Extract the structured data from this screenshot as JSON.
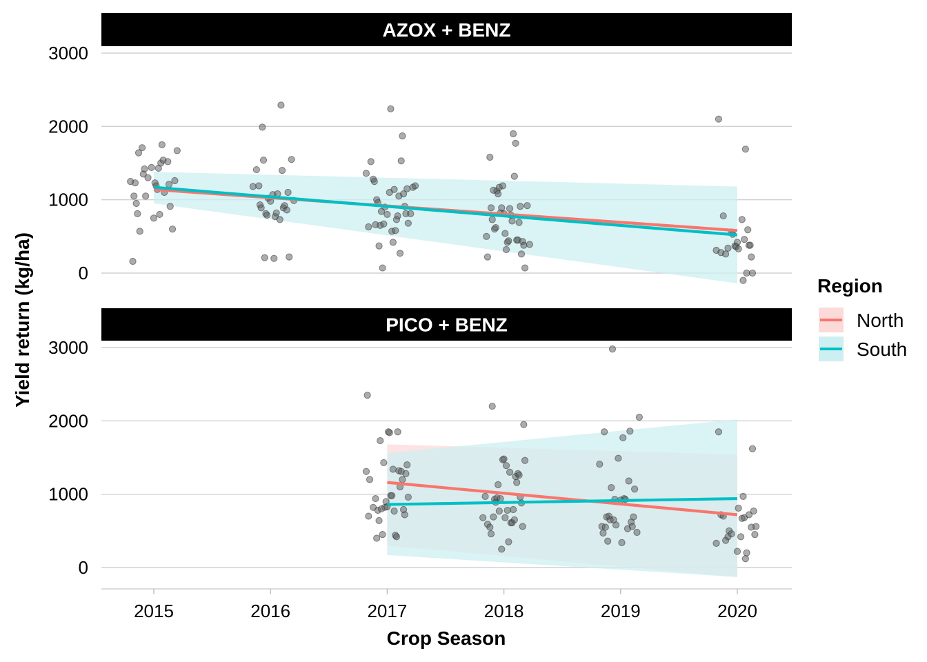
{
  "chart_data": {
    "type": "scatter",
    "xlabel": "Crop Season",
    "ylabel": "Yield return (kg/ha)",
    "x_ticks": [
      "2015",
      "2016",
      "2017",
      "2018",
      "2019",
      "2020"
    ],
    "y_ticks": [
      "0",
      "1000",
      "2000",
      "3000"
    ],
    "xlim": [
      2014.55,
      2020.45
    ],
    "ylim": [
      -300,
      3200
    ],
    "grid": "horizontal major gridlines",
    "legend": {
      "title": "Region",
      "position": "right",
      "entries": [
        {
          "label": "North",
          "color": "#F8766D",
          "band": "#FCDADA"
        },
        {
          "label": "South",
          "color": "#00BFC4",
          "band": "#CDEFF1"
        }
      ]
    },
    "point_color": "#5a5a5a",
    "panels": [
      {
        "strip": "AZOX + BENZ",
        "points": [
          [
            2014.8,
            1250
          ],
          [
            2014.82,
            160
          ],
          [
            2014.83,
            1050
          ],
          [
            2014.84,
            1230
          ],
          [
            2014.85,
            950
          ],
          [
            2014.86,
            810
          ],
          [
            2014.87,
            1640
          ],
          [
            2014.88,
            570
          ],
          [
            2014.9,
            1710
          ],
          [
            2014.91,
            1350
          ],
          [
            2014.92,
            1420
          ],
          [
            2014.93,
            1050
          ],
          [
            2014.95,
            1300
          ],
          [
            2014.98,
            1440
          ],
          [
            2015.0,
            750
          ],
          [
            2015.01,
            1230
          ],
          [
            2015.02,
            1190
          ],
          [
            2015.03,
            1140
          ],
          [
            2015.04,
            1430
          ],
          [
            2015.05,
            800
          ],
          [
            2015.06,
            1500
          ],
          [
            2015.07,
            1750
          ],
          [
            2015.08,
            1540
          ],
          [
            2015.09,
            1100
          ],
          [
            2015.12,
            1520
          ],
          [
            2015.13,
            1210
          ],
          [
            2015.14,
            910
          ],
          [
            2015.16,
            600
          ],
          [
            2015.18,
            1260
          ],
          [
            2015.2,
            1670
          ],
          [
            2015.85,
            1180
          ],
          [
            2015.88,
            1410
          ],
          [
            2015.9,
            1190
          ],
          [
            2015.91,
            930
          ],
          [
            2015.92,
            890
          ],
          [
            2015.93,
            1990
          ],
          [
            2015.94,
            1540
          ],
          [
            2015.95,
            210
          ],
          [
            2015.96,
            810
          ],
          [
            2015.97,
            790
          ],
          [
            2015.98,
            1020
          ],
          [
            2016.0,
            980
          ],
          [
            2016.02,
            1070
          ],
          [
            2016.03,
            200
          ],
          [
            2016.04,
            770
          ],
          [
            2016.05,
            820
          ],
          [
            2016.06,
            1080
          ],
          [
            2016.08,
            730
          ],
          [
            2016.09,
            2290
          ],
          [
            2016.1,
            1400
          ],
          [
            2016.11,
            890
          ],
          [
            2016.12,
            920
          ],
          [
            2016.14,
            860
          ],
          [
            2016.15,
            1100
          ],
          [
            2016.16,
            220
          ],
          [
            2016.18,
            1550
          ],
          [
            2016.2,
            990
          ],
          [
            2016.82,
            1360
          ],
          [
            2016.84,
            630
          ],
          [
            2016.86,
            1520
          ],
          [
            2016.88,
            1280
          ],
          [
            2016.89,
            1250
          ],
          [
            2016.9,
            660
          ],
          [
            2016.91,
            1000
          ],
          [
            2016.92,
            960
          ],
          [
            2016.93,
            370
          ],
          [
            2016.94,
            650
          ],
          [
            2016.95,
            840
          ],
          [
            2016.96,
            70
          ],
          [
            2016.97,
            670
          ],
          [
            2016.98,
            900
          ],
          [
            2017.0,
            800
          ],
          [
            2017.02,
            1100
          ],
          [
            2017.03,
            2240
          ],
          [
            2017.04,
            570
          ],
          [
            2017.05,
            420
          ],
          [
            2017.06,
            1140
          ],
          [
            2017.07,
            580
          ],
          [
            2017.08,
            730
          ],
          [
            2017.09,
            780
          ],
          [
            2017.1,
            1050
          ],
          [
            2017.11,
            270
          ],
          [
            2017.12,
            1530
          ],
          [
            2017.13,
            1870
          ],
          [
            2017.14,
            1080
          ],
          [
            2017.15,
            910
          ],
          [
            2017.16,
            810
          ],
          [
            2017.17,
            1150
          ],
          [
            2017.18,
            680
          ],
          [
            2017.2,
            810
          ],
          [
            2017.22,
            1170
          ],
          [
            2017.24,
            1190
          ],
          [
            2017.85,
            500
          ],
          [
            2017.86,
            220
          ],
          [
            2017.88,
            1580
          ],
          [
            2017.89,
            890
          ],
          [
            2017.9,
            730
          ],
          [
            2017.91,
            1130
          ],
          [
            2017.92,
            600
          ],
          [
            2017.93,
            620
          ],
          [
            2017.94,
            1120
          ],
          [
            2017.95,
            1080
          ],
          [
            2017.96,
            1170
          ],
          [
            2017.97,
            820
          ],
          [
            2017.98,
            890
          ],
          [
            2017.99,
            1190
          ],
          [
            2018.0,
            810
          ],
          [
            2018.01,
            540
          ],
          [
            2018.02,
            320
          ],
          [
            2018.03,
            420
          ],
          [
            2018.04,
            440
          ],
          [
            2018.05,
            880
          ],
          [
            2018.06,
            790
          ],
          [
            2018.07,
            710
          ],
          [
            2018.08,
            1900
          ],
          [
            2018.09,
            1320
          ],
          [
            2018.1,
            1770
          ],
          [
            2018.11,
            450
          ],
          [
            2018.12,
            450
          ],
          [
            2018.13,
            690
          ],
          [
            2018.14,
            910
          ],
          [
            2018.15,
            260
          ],
          [
            2018.16,
            430
          ],
          [
            2018.17,
            380
          ],
          [
            2018.18,
            70
          ],
          [
            2018.2,
            920
          ],
          [
            2018.22,
            390
          ],
          [
            2019.82,
            310
          ],
          [
            2019.84,
            2100
          ],
          [
            2019.86,
            280
          ],
          [
            2019.88,
            780
          ],
          [
            2019.9,
            260
          ],
          [
            2019.92,
            340
          ],
          [
            2019.95,
            560
          ],
          [
            2019.96,
            530
          ],
          [
            2019.98,
            370
          ],
          [
            2019.99,
            360
          ],
          [
            2020.0,
            420
          ],
          [
            2020.01,
            330
          ],
          [
            2020.04,
            730
          ],
          [
            2020.05,
            -100
          ],
          [
            2020.06,
            460
          ],
          [
            2020.07,
            1690
          ],
          [
            2020.08,
            0
          ],
          [
            2020.09,
            590
          ],
          [
            2020.1,
            380
          ],
          [
            2020.11,
            380
          ],
          [
            2020.12,
            220
          ],
          [
            2020.13,
            0
          ]
        ],
        "series": [
          {
            "name": "North",
            "x": [
              2015,
              2020
            ],
            "fit": [
              1140,
              580
            ],
            "lower": [
              1140,
              580
            ],
            "upper": [
              1140,
              580
            ]
          },
          {
            "name": "South",
            "x": [
              2015,
              2020
            ],
            "fit": [
              1170,
              520
            ],
            "lower": [
              950,
              -140
            ],
            "upper": [
              1380,
              1180
            ]
          }
        ]
      },
      {
        "strip": "PICO + BENZ",
        "points": [
          [
            2016.82,
            1310
          ],
          [
            2016.83,
            2350
          ],
          [
            2016.84,
            700
          ],
          [
            2016.85,
            1200
          ],
          [
            2016.88,
            820
          ],
          [
            2016.9,
            940
          ],
          [
            2016.91,
            400
          ],
          [
            2016.92,
            780
          ],
          [
            2016.93,
            640
          ],
          [
            2016.94,
            1730
          ],
          [
            2016.95,
            800
          ],
          [
            2016.96,
            450
          ],
          [
            2016.97,
            1430
          ],
          [
            2016.98,
            820
          ],
          [
            2016.99,
            900
          ],
          [
            2017.0,
            830
          ],
          [
            2017.01,
            1850
          ],
          [
            2017.02,
            1840
          ],
          [
            2017.03,
            980
          ],
          [
            2017.04,
            980
          ],
          [
            2017.05,
            1340
          ],
          [
            2017.06,
            770
          ],
          [
            2017.07,
            440
          ],
          [
            2017.08,
            420
          ],
          [
            2017.09,
            1850
          ],
          [
            2017.1,
            1320
          ],
          [
            2017.11,
            1100
          ],
          [
            2017.12,
            1310
          ],
          [
            2017.13,
            1200
          ],
          [
            2017.14,
            790
          ],
          [
            2017.15,
            720
          ],
          [
            2017.16,
            1280
          ],
          [
            2017.17,
            1400
          ],
          [
            2017.18,
            960
          ],
          [
            2017.82,
            680
          ],
          [
            2017.84,
            970
          ],
          [
            2017.86,
            590
          ],
          [
            2017.88,
            550
          ],
          [
            2017.89,
            460
          ],
          [
            2017.9,
            2200
          ],
          [
            2017.91,
            690
          ],
          [
            2017.92,
            930
          ],
          [
            2017.93,
            890
          ],
          [
            2017.94,
            950
          ],
          [
            2017.95,
            1130
          ],
          [
            2017.96,
            770
          ],
          [
            2017.97,
            940
          ],
          [
            2017.98,
            250
          ],
          [
            2017.99,
            1470
          ],
          [
            2018.0,
            1480
          ],
          [
            2018.01,
            680
          ],
          [
            2018.02,
            1390
          ],
          [
            2018.03,
            780
          ],
          [
            2018.04,
            350
          ],
          [
            2018.05,
            1300
          ],
          [
            2018.06,
            610
          ],
          [
            2018.07,
            610
          ],
          [
            2018.08,
            790
          ],
          [
            2018.09,
            650
          ],
          [
            2018.1,
            1240
          ],
          [
            2018.11,
            1160
          ],
          [
            2018.12,
            1280
          ],
          [
            2018.13,
            1260
          ],
          [
            2018.14,
            960
          ],
          [
            2018.15,
            880
          ],
          [
            2018.16,
            560
          ],
          [
            2018.17,
            1950
          ],
          [
            2018.18,
            1460
          ],
          [
            2018.82,
            1410
          ],
          [
            2018.84,
            560
          ],
          [
            2018.85,
            470
          ],
          [
            2018.86,
            1850
          ],
          [
            2018.87,
            550
          ],
          [
            2018.88,
            690
          ],
          [
            2018.89,
            360
          ],
          [
            2018.9,
            700
          ],
          [
            2018.91,
            650
          ],
          [
            2018.92,
            1090
          ],
          [
            2018.93,
            2980
          ],
          [
            2018.94,
            650
          ],
          [
            2018.95,
            930
          ],
          [
            2018.96,
            580
          ],
          [
            2018.98,
            1490
          ],
          [
            2019.0,
            920
          ],
          [
            2019.01,
            340
          ],
          [
            2019.02,
            1770
          ],
          [
            2019.03,
            940
          ],
          [
            2019.04,
            930
          ],
          [
            2019.06,
            530
          ],
          [
            2019.07,
            1180
          ],
          [
            2019.08,
            1860
          ],
          [
            2019.09,
            620
          ],
          [
            2019.1,
            560
          ],
          [
            2019.11,
            690
          ],
          [
            2019.12,
            1070
          ],
          [
            2019.14,
            480
          ],
          [
            2019.16,
            2050
          ],
          [
            2019.82,
            330
          ],
          [
            2019.84,
            1850
          ],
          [
            2019.86,
            720
          ],
          [
            2019.88,
            700
          ],
          [
            2019.9,
            370
          ],
          [
            2019.92,
            420
          ],
          [
            2019.93,
            500
          ],
          [
            2019.95,
            460
          ],
          [
            2020.0,
            220
          ],
          [
            2020.01,
            810
          ],
          [
            2020.03,
            420
          ],
          [
            2020.04,
            670
          ],
          [
            2020.05,
            970
          ],
          [
            2020.06,
            680
          ],
          [
            2020.07,
            120
          ],
          [
            2020.08,
            200
          ],
          [
            2020.1,
            720
          ],
          [
            2020.12,
            550
          ],
          [
            2020.13,
            1620
          ],
          [
            2020.14,
            770
          ],
          [
            2020.15,
            450
          ],
          [
            2020.16,
            560
          ]
        ],
        "series": [
          {
            "name": "North",
            "x": [
              2017,
              2020
            ],
            "fit": [
              1160,
              720
            ],
            "lower": [
              300,
              -130
            ],
            "upper": [
              1680,
              1540
            ]
          },
          {
            "name": "South",
            "x": [
              2017,
              2020
            ],
            "fit": [
              860,
              940
            ],
            "lower": [
              170,
              -130
            ],
            "upper": [
              1560,
              2020
            ]
          }
        ]
      }
    ]
  }
}
